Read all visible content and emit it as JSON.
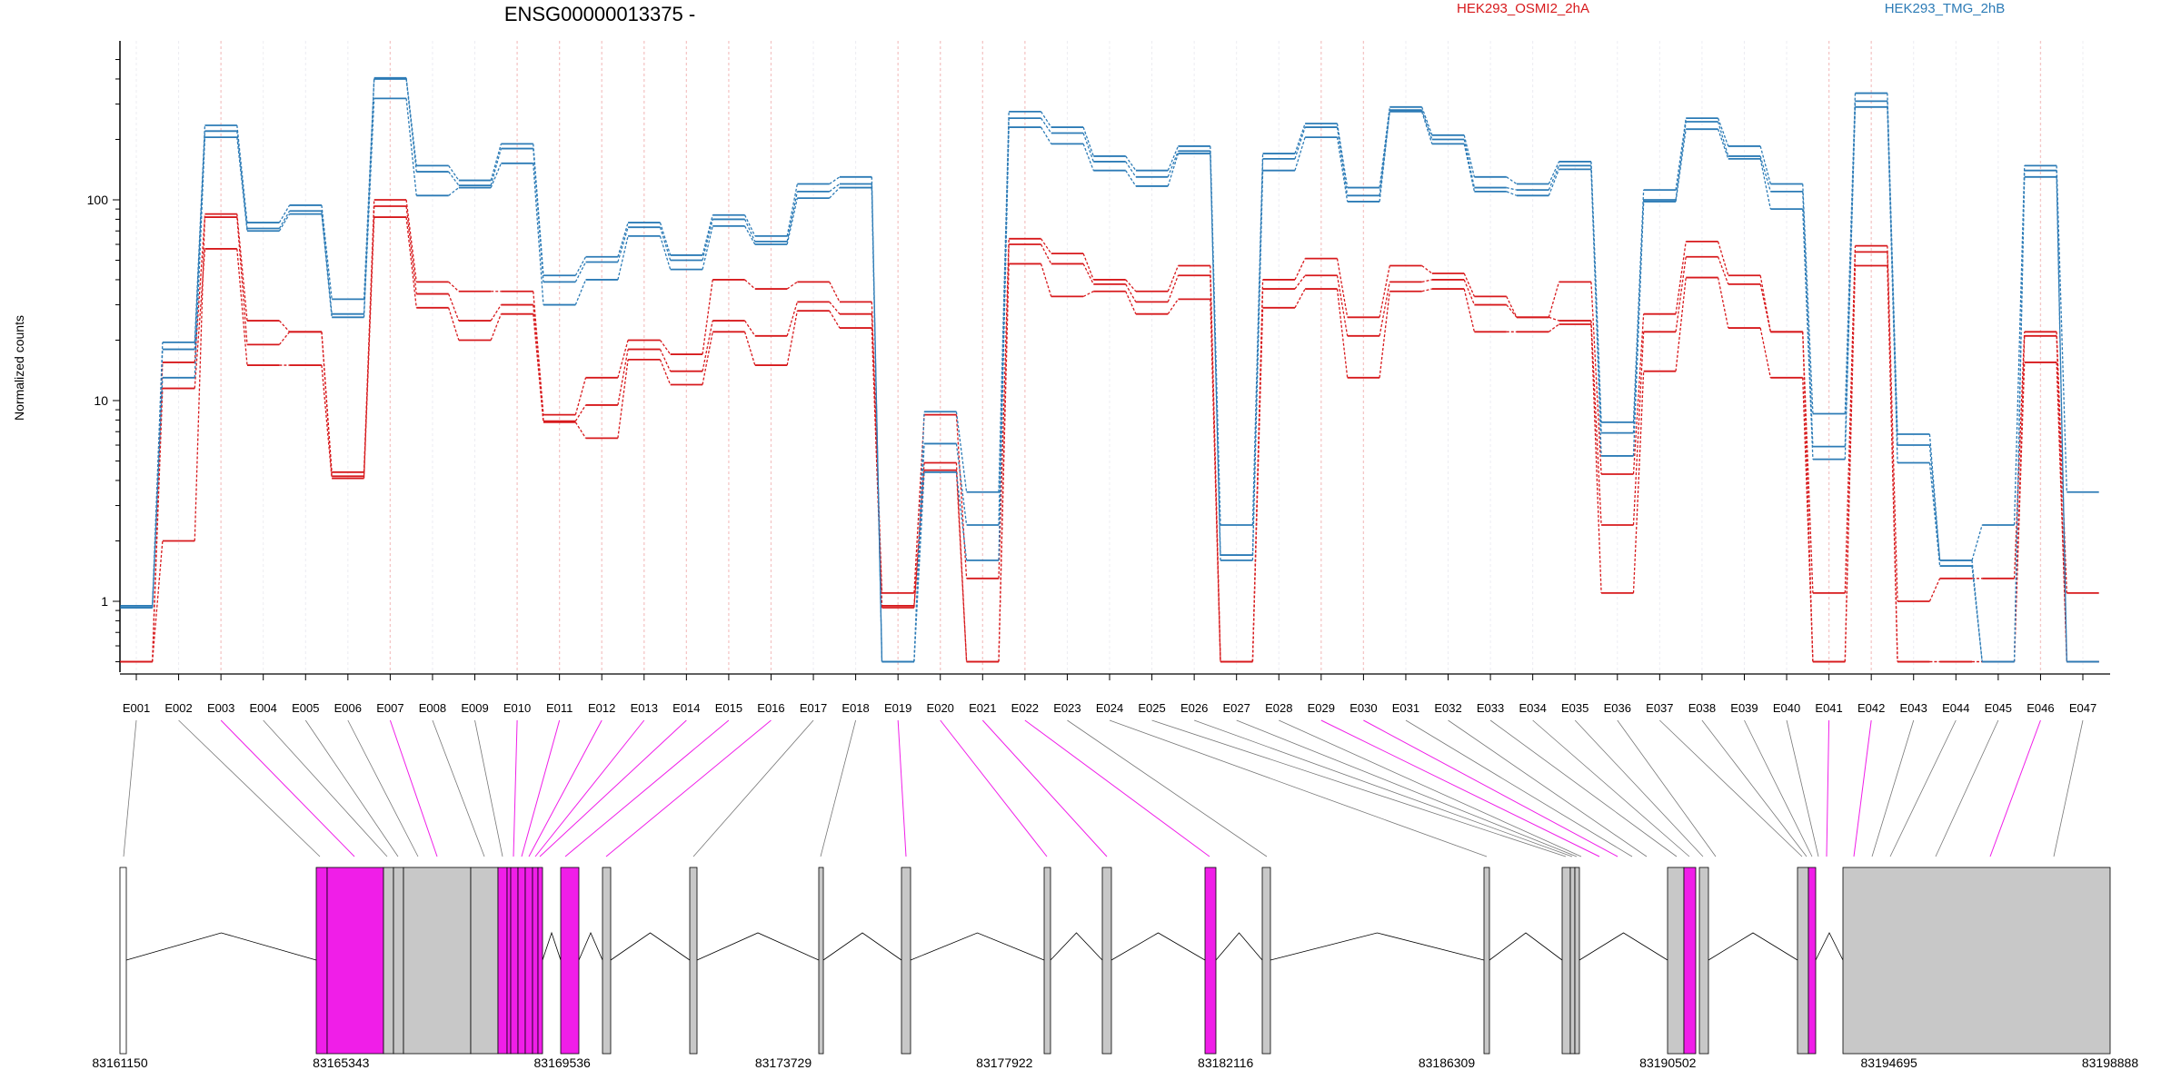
{
  "title": "ENSG00000013375 -",
  "colors": {
    "osmi": "#d7191c",
    "tmg": "#2c7bb6",
    "magenta": "#f01ee8",
    "gray_exon": "#c8c8c8",
    "link_gray": "#777777"
  },
  "legend": [
    {
      "name": "HEK293_OSMI2_2hA",
      "color": "#d7191c",
      "position": "top-center"
    },
    {
      "name": "HEK293_TMG_2hB",
      "color": "#2c7bb6",
      "position": "top-right"
    }
  ],
  "chart_data": {
    "type": "line",
    "ylabel": "Normalized counts",
    "y_scale": "log",
    "ylim": [
      0.47,
      560
    ],
    "y_ticks": [
      {
        "value": 1,
        "label": "1"
      },
      {
        "value": 10,
        "label": "10"
      },
      {
        "value": 100,
        "label": "100"
      }
    ],
    "categories": [
      "E001",
      "E002",
      "E003",
      "E004",
      "E005",
      "E006",
      "E007",
      "E008",
      "E009",
      "E010",
      "E011",
      "E012",
      "E013",
      "E014",
      "E015",
      "E016",
      "E017",
      "E018",
      "E019",
      "E020",
      "E021",
      "E022",
      "E023",
      "E024",
      "E025",
      "E026",
      "E027",
      "E028",
      "E029",
      "E030",
      "E031",
      "E032",
      "E033",
      "E034",
      "E035",
      "E036",
      "E037",
      "E038",
      "E039",
      "E040",
      "E041",
      "E042",
      "E043",
      "E044",
      "E045",
      "E046",
      "E047"
    ],
    "highlighted_bins": [
      "E003",
      "E007",
      "E010",
      "E011",
      "E012",
      "E013",
      "E014",
      "E015",
      "E016",
      "E019",
      "E020",
      "E021",
      "E022",
      "E029",
      "E030",
      "E041",
      "E042",
      "E046"
    ],
    "series": [
      {
        "name": "HEK293_OSMI2_2hA",
        "group": "osmi",
        "values": [
          0.5,
          2,
          85,
          25,
          22,
          4.2,
          100,
          39,
          35,
          35,
          8.5,
          13,
          20,
          17,
          40,
          36,
          39,
          31,
          1.1,
          8.5,
          1.3,
          64,
          54,
          40,
          35,
          47,
          0.5,
          40,
          51,
          26,
          47,
          43,
          33,
          26,
          39,
          4.3,
          27,
          62,
          42,
          22,
          1.1,
          59,
          1,
          1.3,
          1.3,
          22,
          1.1
        ]
      },
      {
        "name": "HEK293_OSMI2_2hA",
        "group": "osmi",
        "values": [
          0.5,
          15.5,
          82,
          19,
          22,
          4.4,
          93,
          34,
          25,
          30,
          7.9,
          9.5,
          18,
          14,
          25,
          21,
          31,
          27,
          0.95,
          4.9,
          0.5,
          60,
          48,
          38,
          31,
          42,
          0.5,
          36,
          42,
          21,
          39,
          40,
          30,
          26,
          25,
          2.4,
          22,
          52,
          38,
          22,
          0.5,
          55,
          0.5,
          0.5,
          0.5,
          21,
          0.5
        ]
      },
      {
        "name": "HEK293_OSMI2_2hA",
        "group": "osmi",
        "values": [
          0.5,
          11.5,
          57,
          15,
          15,
          4.1,
          82,
          29,
          20,
          27,
          7.8,
          6.5,
          16,
          12,
          22,
          15,
          28,
          23,
          0.93,
          4.5,
          0.5,
          48,
          33,
          35,
          27,
          32,
          0.5,
          29,
          36,
          13,
          35,
          36,
          22,
          22,
          24,
          1.1,
          14,
          41,
          23,
          13,
          0.5,
          47,
          0.5,
          0.5,
          0.5,
          15.5,
          0.5
        ]
      },
      {
        "name": "HEK293_TMG_2hB",
        "group": "tmg",
        "values": [
          0.93,
          19.5,
          235,
          77,
          94,
          32,
          405,
          148,
          125,
          190,
          42,
          52,
          77,
          53,
          84,
          66,
          120,
          130,
          0.5,
          8.8,
          3.5,
          275,
          230,
          165,
          140,
          185,
          2.4,
          170,
          240,
          115,
          290,
          210,
          130,
          120,
          155,
          7.8,
          112,
          255,
          185,
          120,
          8.6,
          340,
          6.8,
          1.6,
          2.4,
          148,
          3.5
        ]
      },
      {
        "name": "HEK293_TMG_2hB",
        "group": "tmg",
        "values": [
          0.93,
          18,
          220,
          72,
          88,
          27,
          400,
          138,
          118,
          180,
          39,
          49,
          73,
          50,
          80,
          62,
          110,
          120,
          0.5,
          6.1,
          2.4,
          255,
          215,
          155,
          130,
          175,
          1.7,
          160,
          230,
          105,
          280,
          200,
          115,
          112,
          148,
          6.9,
          100,
          245,
          165,
          110,
          5.9,
          310,
          6,
          1.6,
          0.5,
          140,
          0.5
        ]
      },
      {
        "name": "HEK293_TMG_2hB",
        "group": "tmg",
        "values": [
          0.95,
          13,
          205,
          70,
          85,
          26,
          320,
          105,
          115,
          152,
          30,
          40,
          66,
          45,
          74,
          60,
          102,
          115,
          0.5,
          4.4,
          1.6,
          230,
          190,
          140,
          117,
          170,
          1.6,
          140,
          205,
          98,
          275,
          190,
          110,
          105,
          142,
          5.3,
          98,
          225,
          160,
          90,
          5.1,
          290,
          4.9,
          1.5,
          0.5,
          130,
          0.5
        ]
      }
    ],
    "gene_model": {
      "start_label": "83161150",
      "end_label": "83198888",
      "ticks": [
        "83161150",
        "83165343",
        "83169536",
        "83173729",
        "83177922",
        "83182116",
        "83186309",
        "83190502",
        "83194695",
        "83198888"
      ]
    }
  }
}
